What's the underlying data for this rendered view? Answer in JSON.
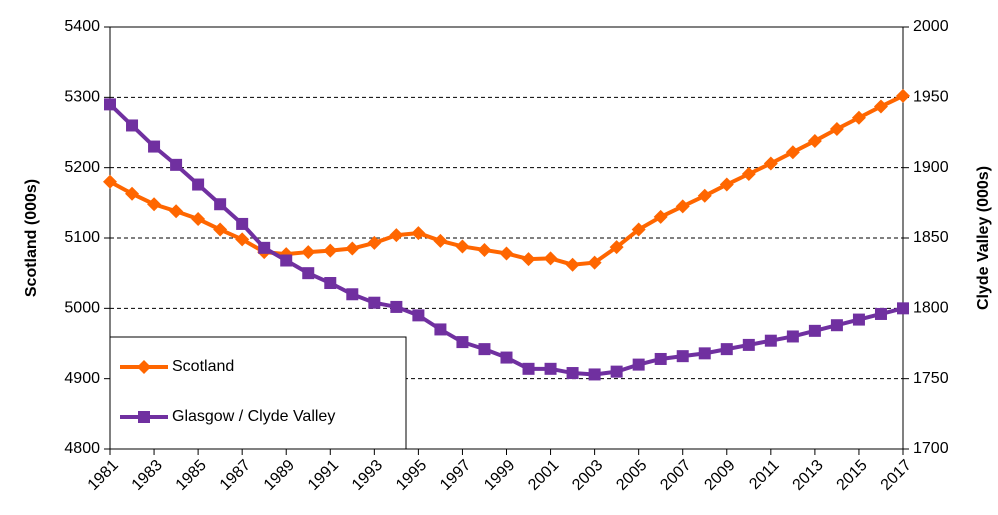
{
  "chart_data": {
    "type": "line",
    "x": [
      1981,
      1982,
      1983,
      1984,
      1985,
      1986,
      1987,
      1988,
      1989,
      1990,
      1991,
      1992,
      1993,
      1994,
      1995,
      1996,
      1997,
      1998,
      1999,
      2000,
      2001,
      2002,
      2003,
      2004,
      2005,
      2006,
      2007,
      2008,
      2009,
      2010,
      2011,
      2012,
      2013,
      2014,
      2015,
      2016,
      2017
    ],
    "xlim": [
      1981,
      2017
    ],
    "xticks": [
      1981,
      1983,
      1985,
      1987,
      1989,
      1991,
      1993,
      1995,
      1997,
      1999,
      2001,
      2003,
      2005,
      2007,
      2009,
      2011,
      2013,
      2015,
      2017
    ],
    "ylabel": "Scotland (000s)",
    "y2label": "Clyde Valley (000s)",
    "ylim": [
      4800,
      5400
    ],
    "yticks": [
      4800,
      4900,
      5000,
      5100,
      5200,
      5300,
      5400
    ],
    "y2lim": [
      1700,
      2000
    ],
    "y2ticks": [
      1700,
      1750,
      1800,
      1850,
      1900,
      1950,
      2000
    ],
    "grid": true,
    "legend": "lower left",
    "series": [
      {
        "name": "Scotland",
        "color": "#ff6600",
        "marker": "diamond",
        "values": [
          5180,
          5163,
          5148,
          5138,
          5127,
          5112,
          5098,
          5080,
          5077,
          5080,
          5082,
          5085,
          5093,
          5104,
          5107,
          5096,
          5088,
          5083,
          5078,
          5070,
          5071,
          5062,
          5065,
          5087,
          5112,
          5130,
          5145,
          5160,
          5176,
          5191,
          5206,
          5222,
          5238,
          5255,
          5271,
          5287,
          5302
        ]
      },
      {
        "name": "Glasgow / Clyde Valley",
        "color": "#7030a0",
        "marker": "square",
        "axis": "y2",
        "values": [
          1945,
          1930,
          1915,
          1902,
          1888,
          1874,
          1860,
          1843,
          1834,
          1825,
          1818,
          1810,
          1804,
          1801,
          1795,
          1785,
          1776,
          1771,
          1765,
          1757,
          1757,
          1754,
          1753,
          1755,
          1760,
          1764,
          1766,
          1768,
          1771,
          1774,
          1777,
          1780,
          1784,
          1788,
          1792,
          1796,
          1800
        ]
      }
    ]
  }
}
